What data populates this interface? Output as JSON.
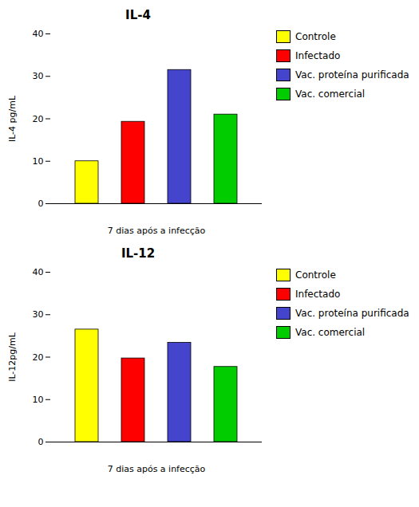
{
  "chart_data": [
    {
      "type": "bar",
      "title": "IL-4",
      "xlabel": "7 dias após a infecção",
      "ylabel": "IL-4 pg/mL",
      "categories": [
        "Controle",
        "Infectado",
        "Vac. proteína purificada",
        "Vac. comercial"
      ],
      "values": [
        10,
        19.3,
        31.5,
        21.0
      ],
      "colors": [
        "#ffff00",
        "#ff0000",
        "#4444cc",
        "#00cc00"
      ],
      "ylim": [
        0,
        40
      ],
      "yticks": [
        0,
        10,
        20,
        30,
        40
      ],
      "grid": false,
      "legend": "right",
      "tick_labels": "y"
    },
    {
      "type": "bar",
      "title": "IL-12",
      "xlabel": "7 dias após a infecção",
      "ylabel": "IL-12pg/mL",
      "categories": [
        "Controle",
        "Infectado",
        "Vac. proteína purificada",
        "Vac. comercial"
      ],
      "values": [
        26.5,
        19.7,
        23.4,
        17.7
      ],
      "colors": [
        "#ffff00",
        "#ff0000",
        "#4444cc",
        "#00cc00"
      ],
      "ylim": [
        0,
        40
      ],
      "yticks": [
        0,
        10,
        20,
        30,
        40
      ],
      "grid": false,
      "legend": "right",
      "tick_labels": "y"
    }
  ]
}
